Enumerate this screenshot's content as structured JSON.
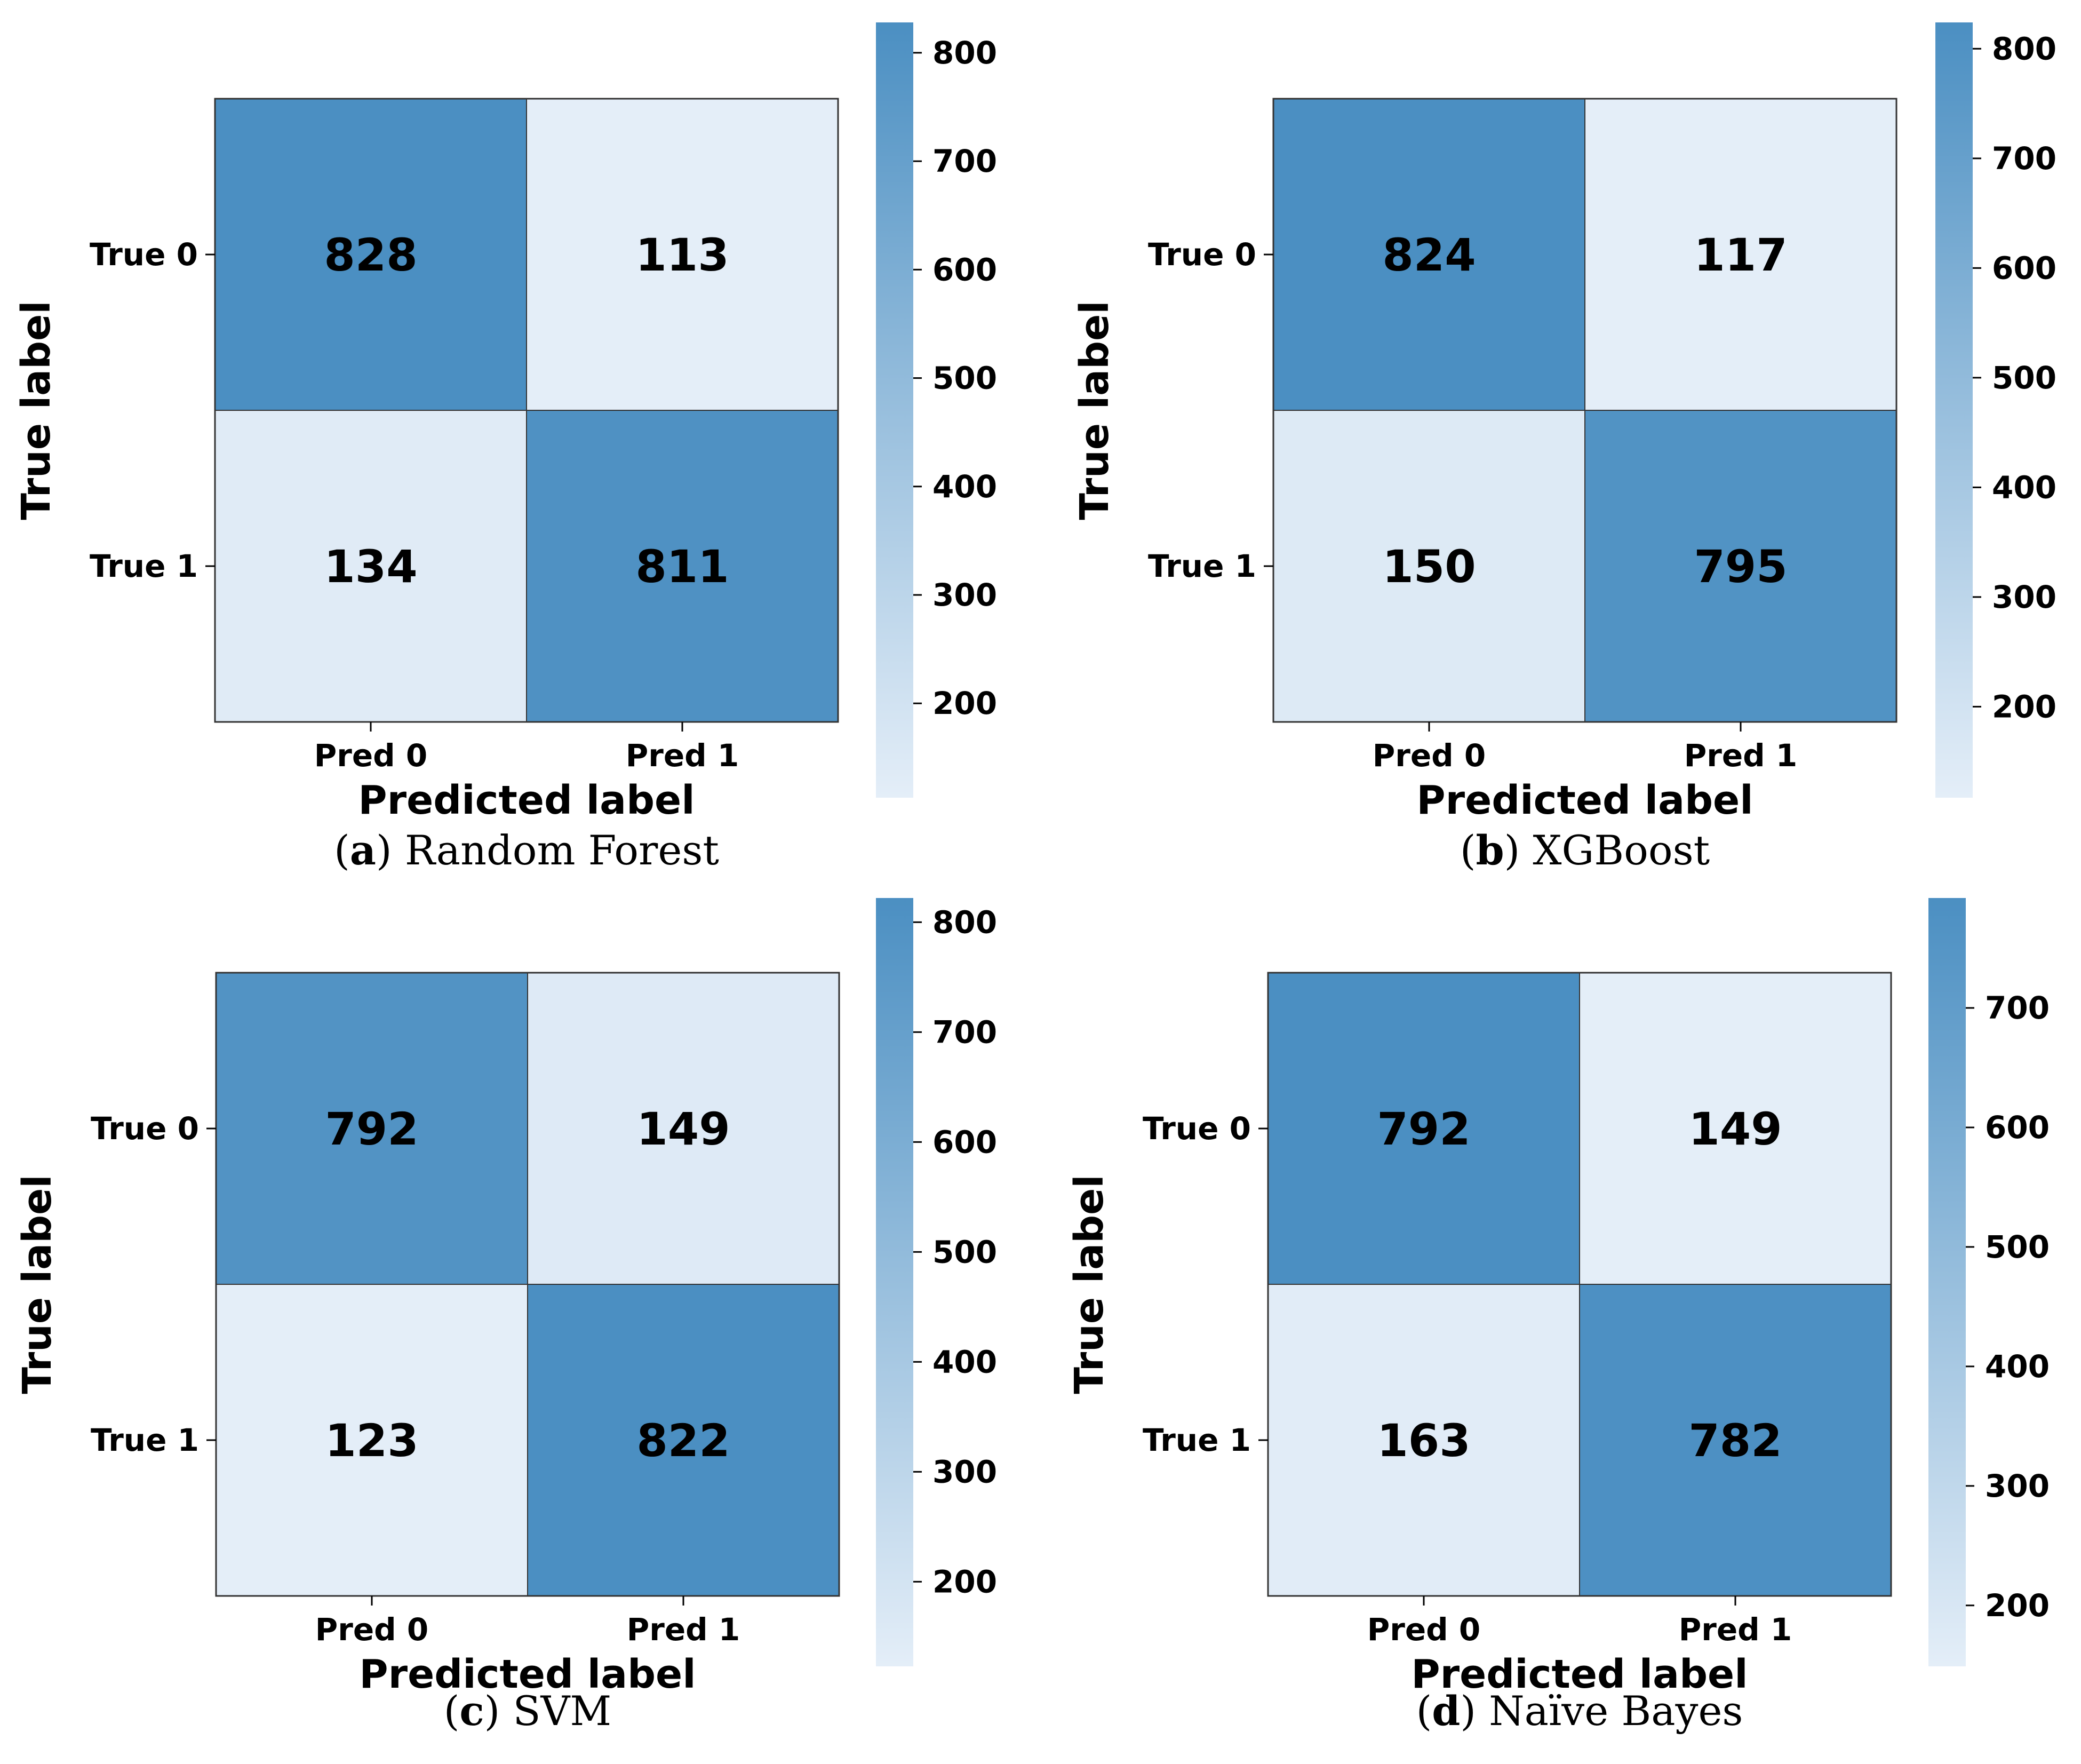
{
  "colors": {
    "high": "#4b8fc2",
    "low": "#e4eef8",
    "cell_text": "#000000",
    "border": "#333333",
    "background": "#ffffff"
  },
  "chart_data": [
    {
      "type": "heatmap",
      "title": "Random Forest",
      "caption_letter": "a",
      "xlabel": "Predicted label",
      "ylabel": "True label",
      "x_categories": [
        "Pred 0",
        "Pred 1"
      ],
      "y_categories": [
        "True 0",
        "True 1"
      ],
      "values": [
        [
          828,
          113
        ],
        [
          134,
          811
        ]
      ],
      "colorbar": {
        "min": 113,
        "max": 828,
        "ticks": [
          200,
          300,
          400,
          500,
          600,
          700,
          800
        ]
      }
    },
    {
      "type": "heatmap",
      "title": "XGBoost",
      "caption_letter": "b",
      "xlabel": "Predicted label",
      "ylabel": "True label",
      "x_categories": [
        "Pred 0",
        "Pred 1"
      ],
      "y_categories": [
        "True 0",
        "True 1"
      ],
      "values": [
        [
          824,
          117
        ],
        [
          150,
          795
        ]
      ],
      "colorbar": {
        "min": 117,
        "max": 824,
        "ticks": [
          200,
          300,
          400,
          500,
          600,
          700,
          800
        ]
      }
    },
    {
      "type": "heatmap",
      "title": "SVM",
      "caption_letter": "c",
      "xlabel": "Predicted label",
      "ylabel": "True label",
      "x_categories": [
        "Pred 0",
        "Pred 1"
      ],
      "y_categories": [
        "True 0",
        "True 1"
      ],
      "values": [
        [
          792,
          149
        ],
        [
          123,
          822
        ]
      ],
      "colorbar": {
        "min": 123,
        "max": 822,
        "ticks": [
          200,
          300,
          400,
          500,
          600,
          700,
          800
        ]
      }
    },
    {
      "type": "heatmap",
      "title": "Naïve Bayes",
      "caption_letter": "d",
      "xlabel": "Predicted label",
      "ylabel": "True label",
      "x_categories": [
        "Pred 0",
        "Pred 1"
      ],
      "y_categories": [
        "True 0",
        "True 1"
      ],
      "values": [
        [
          792,
          149
        ],
        [
          163,
          782
        ]
      ],
      "colorbar": {
        "min": 149,
        "max": 792,
        "ticks": [
          200,
          300,
          400,
          500,
          600,
          700
        ]
      }
    }
  ]
}
